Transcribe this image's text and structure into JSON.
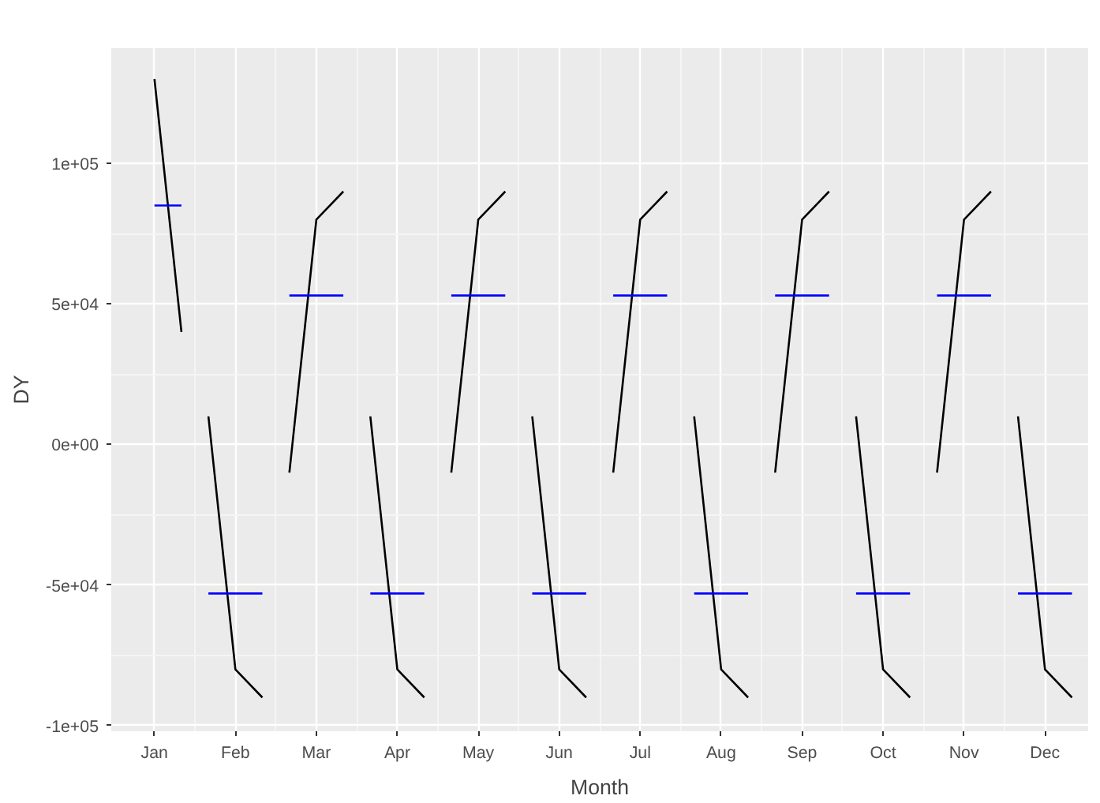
{
  "chart_data": {
    "type": "line",
    "xlabel": "Month",
    "ylabel": "DY",
    "grid": true,
    "categories": [
      null,
      "Jan",
      null,
      null,
      "Feb",
      null,
      null,
      "Mar",
      null,
      null,
      "Apr",
      null,
      null,
      "May",
      null,
      null,
      "Jun",
      null,
      null,
      "Jul",
      null,
      null,
      "Aug",
      null,
      null,
      "Sep",
      null,
      null,
      "Oct",
      null,
      null,
      "Nov",
      null,
      null,
      "Dec",
      null
    ],
    "ylim": [
      -102000,
      141000
    ],
    "yticks": [
      {
        "value": -100000,
        "label": "-1e+05"
      },
      {
        "value": -50000,
        "label": "-5e+04"
      },
      {
        "value": 0,
        "label": "0e+00"
      },
      {
        "value": 50000,
        "label": "5e+04"
      },
      {
        "value": 100000,
        "label": "1e+05"
      }
    ],
    "series": [
      {
        "color": "#000000",
        "values": [
          null,
          130000,
          40000,
          null,
          null,
          null,
          null,
          null,
          null,
          null,
          null,
          null,
          null,
          null,
          null,
          null,
          null,
          null,
          null,
          null,
          null,
          null,
          null,
          null,
          null,
          null,
          null,
          null,
          null,
          null,
          null,
          null,
          null,
          null,
          null,
          null
        ]
      },
      {
        "color": "#0000ff",
        "values": [
          null,
          85000,
          85000,
          null,
          null,
          null,
          null,
          null,
          null,
          null,
          null,
          null,
          null,
          null,
          null,
          null,
          null,
          null,
          null,
          null,
          null,
          null,
          null,
          null,
          null,
          null,
          null,
          null,
          null,
          null,
          null,
          null,
          null,
          null,
          null,
          null
        ]
      },
      {
        "color": "#000000",
        "values": [
          null,
          null,
          null,
          10000,
          -80000,
          -90000,
          null,
          null,
          null,
          null,
          null,
          null,
          null,
          null,
          null,
          null,
          null,
          null,
          null,
          null,
          null,
          null,
          null,
          null,
          null,
          null,
          null,
          null,
          null,
          null,
          null,
          null,
          null,
          null,
          null,
          null
        ]
      },
      {
        "color": "#0000ff",
        "values": [
          null,
          null,
          null,
          -53000,
          -53000,
          -53000,
          null,
          null,
          null,
          null,
          null,
          null,
          null,
          null,
          null,
          null,
          null,
          null,
          null,
          null,
          null,
          null,
          null,
          null,
          null,
          null,
          null,
          null,
          null,
          null,
          null,
          null,
          null,
          null,
          null,
          null
        ]
      },
      {
        "color": "#000000",
        "values": [
          null,
          null,
          null,
          null,
          null,
          null,
          -10000,
          80000,
          90000,
          null,
          null,
          null,
          null,
          null,
          null,
          null,
          null,
          null,
          null,
          null,
          null,
          null,
          null,
          null,
          null,
          null,
          null,
          null,
          null,
          null,
          null,
          null,
          null,
          null,
          null,
          null
        ]
      },
      {
        "color": "#0000ff",
        "values": [
          null,
          null,
          null,
          null,
          null,
          null,
          53000,
          53000,
          53000,
          null,
          null,
          null,
          null,
          null,
          null,
          null,
          null,
          null,
          null,
          null,
          null,
          null,
          null,
          null,
          null,
          null,
          null,
          null,
          null,
          null,
          null,
          null,
          null,
          null,
          null,
          null
        ]
      },
      {
        "color": "#000000",
        "values": [
          null,
          null,
          null,
          null,
          null,
          null,
          null,
          null,
          null,
          10000,
          -80000,
          -90000,
          null,
          null,
          null,
          null,
          null,
          null,
          null,
          null,
          null,
          null,
          null,
          null,
          null,
          null,
          null,
          null,
          null,
          null,
          null,
          null,
          null,
          null,
          null,
          null
        ]
      },
      {
        "color": "#0000ff",
        "values": [
          null,
          null,
          null,
          null,
          null,
          null,
          null,
          null,
          null,
          -53000,
          -53000,
          -53000,
          null,
          null,
          null,
          null,
          null,
          null,
          null,
          null,
          null,
          null,
          null,
          null,
          null,
          null,
          null,
          null,
          null,
          null,
          null,
          null,
          null,
          null,
          null,
          null
        ]
      },
      {
        "color": "#000000",
        "values": [
          null,
          null,
          null,
          null,
          null,
          null,
          null,
          null,
          null,
          null,
          null,
          null,
          -10000,
          80000,
          90000,
          null,
          null,
          null,
          null,
          null,
          null,
          null,
          null,
          null,
          null,
          null,
          null,
          null,
          null,
          null,
          null,
          null,
          null,
          null,
          null,
          null
        ]
      },
      {
        "color": "#0000ff",
        "values": [
          null,
          null,
          null,
          null,
          null,
          null,
          null,
          null,
          null,
          null,
          null,
          null,
          53000,
          53000,
          53000,
          null,
          null,
          null,
          null,
          null,
          null,
          null,
          null,
          null,
          null,
          null,
          null,
          null,
          null,
          null,
          null,
          null,
          null,
          null,
          null,
          null
        ]
      },
      {
        "color": "#000000",
        "values": [
          null,
          null,
          null,
          null,
          null,
          null,
          null,
          null,
          null,
          null,
          null,
          null,
          null,
          null,
          null,
          10000,
          -80000,
          -90000,
          null,
          null,
          null,
          null,
          null,
          null,
          null,
          null,
          null,
          null,
          null,
          null,
          null,
          null,
          null,
          null,
          null,
          null
        ]
      },
      {
        "color": "#0000ff",
        "values": [
          null,
          null,
          null,
          null,
          null,
          null,
          null,
          null,
          null,
          null,
          null,
          null,
          null,
          null,
          null,
          -53000,
          -53000,
          -53000,
          null,
          null,
          null,
          null,
          null,
          null,
          null,
          null,
          null,
          null,
          null,
          null,
          null,
          null,
          null,
          null,
          null,
          null
        ]
      },
      {
        "color": "#000000",
        "values": [
          null,
          null,
          null,
          null,
          null,
          null,
          null,
          null,
          null,
          null,
          null,
          null,
          null,
          null,
          null,
          null,
          null,
          null,
          -10000,
          80000,
          90000,
          null,
          null,
          null,
          null,
          null,
          null,
          null,
          null,
          null,
          null,
          null,
          null,
          null,
          null,
          null
        ]
      },
      {
        "color": "#0000ff",
        "values": [
          null,
          null,
          null,
          null,
          null,
          null,
          null,
          null,
          null,
          null,
          null,
          null,
          null,
          null,
          null,
          null,
          null,
          null,
          53000,
          53000,
          53000,
          null,
          null,
          null,
          null,
          null,
          null,
          null,
          null,
          null,
          null,
          null,
          null,
          null,
          null,
          null
        ]
      },
      {
        "color": "#000000",
        "values": [
          null,
          null,
          null,
          null,
          null,
          null,
          null,
          null,
          null,
          null,
          null,
          null,
          null,
          null,
          null,
          null,
          null,
          null,
          null,
          null,
          null,
          10000,
          -80000,
          -90000,
          null,
          null,
          null,
          null,
          null,
          null,
          null,
          null,
          null,
          null,
          null,
          null
        ]
      },
      {
        "color": "#0000ff",
        "values": [
          null,
          null,
          null,
          null,
          null,
          null,
          null,
          null,
          null,
          null,
          null,
          null,
          null,
          null,
          null,
          null,
          null,
          null,
          null,
          null,
          null,
          -53000,
          -53000,
          -53000,
          null,
          null,
          null,
          null,
          null,
          null,
          null,
          null,
          null,
          null,
          null,
          null
        ]
      },
      {
        "color": "#000000",
        "values": [
          null,
          null,
          null,
          null,
          null,
          null,
          null,
          null,
          null,
          null,
          null,
          null,
          null,
          null,
          null,
          null,
          null,
          null,
          null,
          null,
          null,
          null,
          null,
          null,
          -10000,
          80000,
          90000,
          null,
          null,
          null,
          null,
          null,
          null,
          null,
          null,
          null
        ]
      },
      {
        "color": "#0000ff",
        "values": [
          null,
          null,
          null,
          null,
          null,
          null,
          null,
          null,
          null,
          null,
          null,
          null,
          null,
          null,
          null,
          null,
          null,
          null,
          null,
          null,
          null,
          null,
          null,
          null,
          53000,
          53000,
          53000,
          null,
          null,
          null,
          null,
          null,
          null,
          null,
          null,
          null
        ]
      },
      {
        "color": "#000000",
        "values": [
          null,
          null,
          null,
          null,
          null,
          null,
          null,
          null,
          null,
          null,
          null,
          null,
          null,
          null,
          null,
          null,
          null,
          null,
          null,
          null,
          null,
          null,
          null,
          null,
          null,
          null,
          null,
          10000,
          -80000,
          -90000,
          null,
          null,
          null,
          null,
          null,
          null
        ]
      },
      {
        "color": "#0000ff",
        "values": [
          null,
          null,
          null,
          null,
          null,
          null,
          null,
          null,
          null,
          null,
          null,
          null,
          null,
          null,
          null,
          null,
          null,
          null,
          null,
          null,
          null,
          null,
          null,
          null,
          null,
          null,
          null,
          -53000,
          -53000,
          -53000,
          null,
          null,
          null,
          null,
          null,
          null
        ]
      },
      {
        "color": "#000000",
        "values": [
          null,
          null,
          null,
          null,
          null,
          null,
          null,
          null,
          null,
          null,
          null,
          null,
          null,
          null,
          null,
          null,
          null,
          null,
          null,
          null,
          null,
          null,
          null,
          null,
          null,
          null,
          null,
          null,
          null,
          null,
          -10000,
          80000,
          90000,
          null,
          null,
          null
        ]
      },
      {
        "color": "#0000ff",
        "values": [
          null,
          null,
          null,
          null,
          null,
          null,
          null,
          null,
          null,
          null,
          null,
          null,
          null,
          null,
          null,
          null,
          null,
          null,
          null,
          null,
          null,
          null,
          null,
          null,
          null,
          null,
          null,
          null,
          null,
          null,
          53000,
          53000,
          53000,
          null,
          null,
          null
        ]
      },
      {
        "color": "#000000",
        "values": [
          null,
          null,
          null,
          null,
          null,
          null,
          null,
          null,
          null,
          null,
          null,
          null,
          null,
          null,
          null,
          null,
          null,
          null,
          null,
          null,
          null,
          null,
          null,
          null,
          null,
          null,
          null,
          null,
          null,
          null,
          null,
          null,
          null,
          10000,
          -80000,
          -90000
        ]
      },
      {
        "color": "#0000ff",
        "values": [
          null,
          null,
          null,
          null,
          null,
          null,
          null,
          null,
          null,
          null,
          null,
          null,
          null,
          null,
          null,
          null,
          null,
          null,
          null,
          null,
          null,
          null,
          null,
          null,
          null,
          null,
          null,
          null,
          null,
          null,
          null,
          null,
          null,
          -53000,
          -53000,
          -53000
        ]
      }
    ]
  }
}
